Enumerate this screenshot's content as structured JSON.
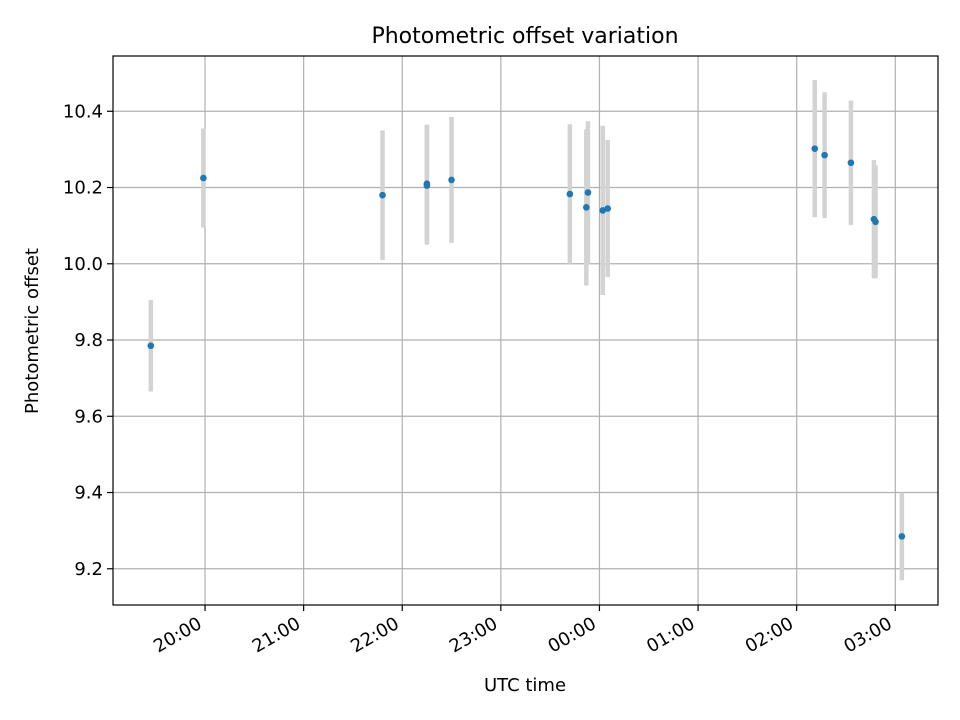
{
  "chart_data": {
    "type": "scatter",
    "title": "Photometric offset variation",
    "xlabel": "UTC time",
    "ylabel": "Photometric offset",
    "x_axis_type": "time",
    "xlim": [
      "19:04",
      "03:26"
    ],
    "ylim": [
      9.105,
      10.545
    ],
    "x_ticks": [
      "20:00",
      "21:00",
      "22:00",
      "23:00",
      "00:00",
      "01:00",
      "02:00",
      "03:00"
    ],
    "y_ticks": [
      "9.2",
      "9.4",
      "9.6",
      "9.8",
      "10.0",
      "10.2",
      "10.4"
    ],
    "y_tick_values": [
      9.2,
      9.4,
      9.6,
      9.8,
      10.0,
      10.2,
      10.4
    ],
    "grid": true,
    "marker_color": "#1f77b4",
    "errorbar_color": "#d3d3d3",
    "points": [
      {
        "time": "19:27",
        "y": 9.785,
        "err": 0.12
      },
      {
        "time": "19:59",
        "y": 10.225,
        "err": 0.13
      },
      {
        "time": "21:48",
        "y": 10.18,
        "err": 0.17
      },
      {
        "time": "22:15",
        "y": 10.21,
        "err": 0.155
      },
      {
        "time": "22:15",
        "y": 10.205,
        "err": 0.155
      },
      {
        "time": "22:30",
        "y": 10.22,
        "err": 0.165
      },
      {
        "time": "23:42",
        "y": 10.183,
        "err": 0.183
      },
      {
        "time": "23:52",
        "y": 10.148,
        "err": 0.205
      },
      {
        "time": "23:53",
        "y": 10.187,
        "err": 0.187
      },
      {
        "time": "00:02",
        "y": 10.14,
        "err": 0.222
      },
      {
        "time": "00:05",
        "y": 10.145,
        "err": 0.18
      },
      {
        "time": "02:11",
        "y": 10.302,
        "err": 0.18
      },
      {
        "time": "02:17",
        "y": 10.285,
        "err": 0.165
      },
      {
        "time": "02:33",
        "y": 10.265,
        "err": 0.163
      },
      {
        "time": "02:47",
        "y": 10.117,
        "err": 0.155
      },
      {
        "time": "02:48",
        "y": 10.11,
        "err": 0.148
      },
      {
        "time": "03:04",
        "y": 9.285,
        "err": 0.115
      }
    ]
  }
}
